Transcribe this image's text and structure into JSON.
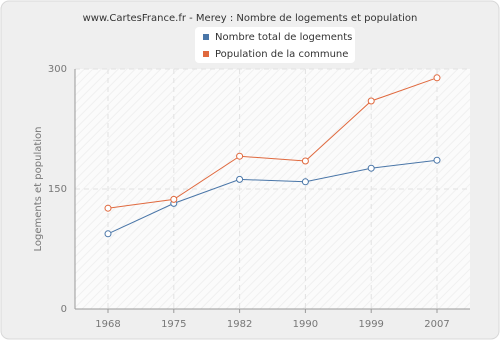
{
  "chart_data": {
    "type": "line",
    "title": "www.CartesFrance.fr - Merey : Nombre de logements et population",
    "y_label": "Logements et population",
    "categories": [
      "1968",
      "1975",
      "1982",
      "1990",
      "1999",
      "2007"
    ],
    "series": [
      {
        "name": "Nombre total de logements",
        "color": "#4a76a8",
        "values": [
          94,
          132,
          162,
          159,
          176,
          186
        ]
      },
      {
        "name": "Population de la commune",
        "color": "#e0693e",
        "values": [
          126,
          137,
          191,
          185,
          260,
          289
        ]
      }
    ],
    "ylim": [
      0,
      300
    ],
    "yticks": [
      0,
      150,
      300
    ],
    "grid": true
  }
}
